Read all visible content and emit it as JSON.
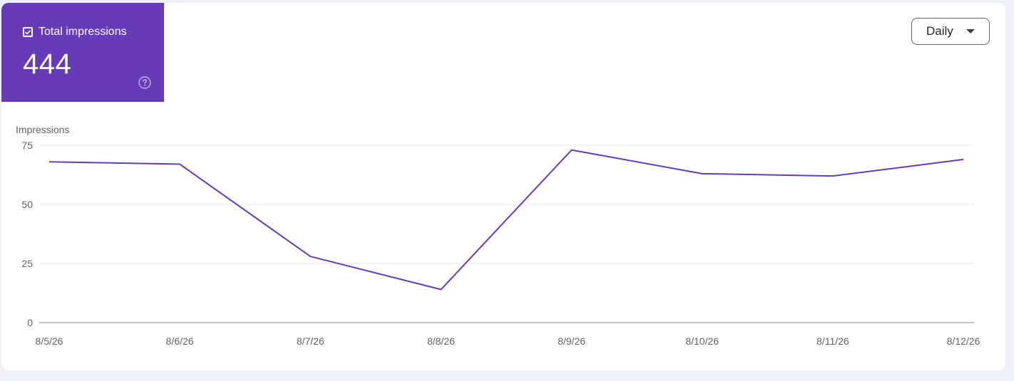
{
  "metric": {
    "label": "Total impressions",
    "value": "444",
    "checked": true,
    "help_icon": "help-circle-icon",
    "tile_color": "#673ab7"
  },
  "period_select": {
    "selected": "Daily",
    "icon": "chevron-down-icon"
  },
  "chart_data": {
    "type": "line",
    "ylabel": "Impressions",
    "xlabel": "",
    "categories": [
      "8/5/26",
      "8/6/26",
      "8/7/26",
      "8/8/26",
      "8/9/26",
      "8/10/26",
      "8/11/26",
      "8/12/26"
    ],
    "series": [
      {
        "values": [
          68,
          67,
          28,
          14,
          73,
          63,
          62,
          69
        ],
        "color": "#673ab7"
      }
    ],
    "ylim": [
      0,
      75
    ],
    "yticks": [
      0,
      25,
      50,
      75
    ],
    "grid": true,
    "legend": "none"
  }
}
